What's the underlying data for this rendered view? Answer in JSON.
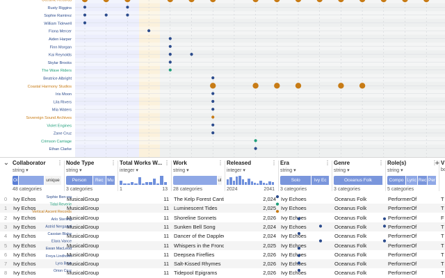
{
  "chart": {
    "people": [
      {
        "name": "Oceanic Records",
        "color": "#c77b15"
      },
      {
        "name": "Rusty Riggins",
        "color": "#2b4b8c"
      },
      {
        "name": "Sophie Ramirez",
        "color": "#2b4b8c"
      },
      {
        "name": "William Tidewell",
        "color": "#2b4b8c"
      },
      {
        "name": "Fiona Mercer",
        "color": "#2b4b8c"
      },
      {
        "name": "Aiden Harper",
        "color": "#2b4b8c"
      },
      {
        "name": "Finn Morgan",
        "color": "#2b4b8c"
      },
      {
        "name": "Kai Reynolds",
        "color": "#2b4b8c"
      },
      {
        "name": "Skylar Brooks",
        "color": "#2b4b8c"
      },
      {
        "name": "The Wave Riders",
        "color": "#1e9e7a"
      },
      {
        "name": "Beatrice Albright",
        "color": "#2b4b8c"
      },
      {
        "name": "Coastal Harmony Studios",
        "color": "#c77b15"
      },
      {
        "name": "Iris Moon",
        "color": "#2b4b8c"
      },
      {
        "name": "Lila Rivers",
        "color": "#2b4b8c"
      },
      {
        "name": "Mia Waters",
        "color": "#2b4b8c"
      },
      {
        "name": "Sovereign Sound Archives",
        "color": "#c77b15"
      },
      {
        "name": "Violet Engines",
        "color": "#1e9e7a"
      },
      {
        "name": "Zane Cruz",
        "color": "#2b4b8c"
      },
      {
        "name": "Crimson Carriage",
        "color": "#1e9e7a"
      },
      {
        "name": "Ethan Clarke",
        "color": "#2b4b8c"
      }
    ],
    "dots": [
      {
        "row": 0,
        "col": 0,
        "big": true,
        "color": "#c77b15"
      },
      {
        "row": 0,
        "col": 1,
        "big": true,
        "color": "#c77b15"
      },
      {
        "row": 0,
        "col": 2,
        "big": true,
        "color": "#c77b15"
      },
      {
        "row": 0,
        "col": 4,
        "big": true,
        "color": "#c77b15"
      },
      {
        "row": 0,
        "col": 5,
        "big": true,
        "color": "#c77b15"
      },
      {
        "row": 0,
        "col": 6,
        "big": true,
        "color": "#c77b15"
      },
      {
        "row": 0,
        "col": 8,
        "big": true,
        "color": "#c77b15"
      },
      {
        "row": 0,
        "col": 9,
        "big": true,
        "color": "#c77b15"
      },
      {
        "row": 0,
        "col": 10,
        "big": true,
        "color": "#c77b15"
      },
      {
        "row": 0,
        "col": 11,
        "big": true,
        "color": "#c77b15"
      },
      {
        "row": 0,
        "col": 12,
        "big": true,
        "color": "#c77b15"
      },
      {
        "row": 0,
        "col": 13,
        "big": true,
        "color": "#c77b15"
      },
      {
        "row": 0,
        "col": 14,
        "big": true,
        "color": "#c77b15"
      },
      {
        "row": 0,
        "col": 15,
        "big": true,
        "color": "#c77b15"
      },
      {
        "row": 0,
        "col": 16,
        "big": true,
        "color": "#c77b15"
      },
      {
        "row": 1,
        "col": 0,
        "big": false,
        "color": "#2b4b8c"
      },
      {
        "row": 1,
        "col": 2,
        "big": false,
        "color": "#2b4b8c"
      },
      {
        "row": 2,
        "col": 0,
        "big": false,
        "color": "#2b4b8c"
      },
      {
        "row": 2,
        "col": 1,
        "big": false,
        "color": "#2b4b8c"
      },
      {
        "row": 2,
        "col": 2,
        "big": false,
        "color": "#2b4b8c"
      },
      {
        "row": 3,
        "col": 0,
        "big": false,
        "color": "#2b4b8c"
      },
      {
        "row": 4,
        "col": 3,
        "big": false,
        "color": "#2b4b8c"
      },
      {
        "row": 5,
        "col": 4,
        "big": false,
        "color": "#2b4b8c"
      },
      {
        "row": 6,
        "col": 4,
        "big": false,
        "color": "#2b4b8c"
      },
      {
        "row": 7,
        "col": 4,
        "big": false,
        "color": "#2b4b8c"
      },
      {
        "row": 7,
        "col": 5,
        "big": false,
        "color": "#2b4b8c"
      },
      {
        "row": 8,
        "col": 4,
        "big": false,
        "color": "#2b4b8c"
      },
      {
        "row": 9,
        "col": 4,
        "big": false,
        "color": "#1e9e7a"
      },
      {
        "row": 10,
        "col": 6,
        "big": false,
        "color": "#2b4b8c"
      },
      {
        "row": 11,
        "col": 6,
        "big": true,
        "color": "#c77b15"
      },
      {
        "row": 11,
        "col": 8,
        "big": true,
        "color": "#c77b15"
      },
      {
        "row": 11,
        "col": 9,
        "big": true,
        "color": "#c77b15"
      },
      {
        "row": 11,
        "col": 10,
        "big": true,
        "color": "#c77b15"
      },
      {
        "row": 11,
        "col": 12,
        "big": true,
        "color": "#c77b15"
      },
      {
        "row": 11,
        "col": 13,
        "big": true,
        "color": "#c77b15"
      },
      {
        "row": 12,
        "col": 6,
        "big": false,
        "color": "#2b4b8c"
      },
      {
        "row": 13,
        "col": 6,
        "big": false,
        "color": "#2b4b8c"
      },
      {
        "row": 14,
        "col": 6,
        "big": false,
        "color": "#2b4b8c"
      },
      {
        "row": 15,
        "col": 6,
        "big": false,
        "color": "#c77b15"
      },
      {
        "row": 16,
        "col": 6,
        "big": false,
        "color": "#2b4b8c"
      },
      {
        "row": 17,
        "col": 6,
        "big": false,
        "color": "#2b4b8c"
      },
      {
        "row": 18,
        "col": 8,
        "big": false,
        "color": "#1e9e7a"
      },
      {
        "row": 19,
        "col": 8,
        "big": false,
        "color": "#2b4b8c"
      }
    ]
  },
  "table": {
    "columns": [
      {
        "name": "Collaborator",
        "type": "string",
        "summary": "48 categories",
        "viz": "cat"
      },
      {
        "name": "Node Type",
        "type": "string",
        "summary": "3 categories",
        "viz": "cat"
      },
      {
        "name": "Total Works W...",
        "type": "integer",
        "summary_min": "1",
        "summary_max": "13",
        "viz": "hist"
      },
      {
        "name": "Work",
        "type": "string",
        "summary": "28 categories",
        "viz": "cat"
      },
      {
        "name": "Released",
        "type": "integer",
        "summary_min": "2024",
        "summary_max": "2041",
        "viz": "hist"
      },
      {
        "name": "Era",
        "type": "string",
        "summary": "3 categories",
        "viz": "cat"
      },
      {
        "name": "Genre",
        "type": "string",
        "summary": "3 categories",
        "viz": "cat"
      },
      {
        "name": "Role(s)",
        "type": "string",
        "summary": "5 categories",
        "viz": "cat"
      },
      {
        "name": "V",
        "type": "bo",
        "summary": "",
        "viz": "none"
      }
    ],
    "cat_bars": {
      "collaborator": [
        {
          "label": "Oi",
          "w": 0.13,
          "color": "#5b7fd6"
        },
        {
          "label": "",
          "w": 0.52,
          "color": "#8fa8e6"
        },
        {
          "label": "unique",
          "w": 0.35,
          "color": "#f2f2f2",
          "text": "#333"
        }
      ],
      "node_type": [
        {
          "label": "Person",
          "w": 0.55,
          "color": "#7a96dc"
        },
        {
          "label": "Rec",
          "w": 0.26,
          "color": "#8fa8e6"
        },
        {
          "label": "Mu",
          "w": 0.19,
          "color": "#7a96dc"
        }
      ],
      "work": [
        {
          "label": "",
          "w": 0.9,
          "color": "#8fa8e6"
        },
        {
          "label": "ul",
          "w": 0.1,
          "color": "#f2f2f2",
          "text": "#333"
        }
      ],
      "era": [
        {
          "label": "Solo",
          "w": 0.64,
          "color": "#7a96dc"
        },
        {
          "label": "Ivy Ec",
          "w": 0.36,
          "color": "#7a96dc"
        }
      ],
      "genre": [
        {
          "label": "Oceanus Folk",
          "w": 1.0,
          "color": "#7a96dc"
        }
      ],
      "roles": [
        {
          "label": "Compo",
          "w": 0.38,
          "color": "#7a96dc"
        },
        {
          "label": "Lyric",
          "w": 0.24,
          "color": "#8fa8e6"
        },
        {
          "label": "Rec",
          "w": 0.2,
          "color": "#7a96dc"
        },
        {
          "label": "Per",
          "w": 0.18,
          "color": "#8fa8e6"
        }
      ]
    },
    "hist_total": [
      3,
      1,
      1,
      2,
      1,
      5,
      1,
      2,
      2,
      4,
      1,
      6,
      2
    ],
    "hist_released": [
      7,
      10,
      6,
      11,
      12,
      7,
      4,
      8,
      5,
      3,
      2,
      6,
      3,
      2,
      5,
      4
    ],
    "rows": [
      {
        "idx": "0",
        "collab": "Ivy Echos",
        "type": "MusicalGroup",
        "total": "11",
        "work": "The Kelp Forest Cantic",
        "rel": "2,024",
        "era": "Ivy Echoes",
        "genre": "Oceanus Folk",
        "role": "PerformerOf",
        "v": "T"
      },
      {
        "idx": "1",
        "collab": "Ivy Echos",
        "type": "MusicalGroup",
        "total": "11",
        "work": "Luminescent Tides",
        "rel": "2,025",
        "era": "Ivy Echoes",
        "genre": "Oceanus Folk",
        "role": "PerformerOf",
        "v": "T"
      },
      {
        "idx": "2",
        "collab": "Ivy Echos",
        "type": "MusicalGroup",
        "total": "11",
        "work": "Shoreline Sonnets",
        "rel": "2,026",
        "era": "Ivy Echoes",
        "genre": "Oceanus Folk",
        "role": "PerformerOf",
        "v": "F"
      },
      {
        "idx": "3",
        "collab": "Ivy Echos",
        "type": "MusicalGroup",
        "total": "11",
        "work": "Sunken Bell Song",
        "rel": "2,024",
        "era": "Ivy Echoes",
        "genre": "Oceanus Folk",
        "role": "PerformerOf",
        "v": "T"
      },
      {
        "idx": "4",
        "collab": "Ivy Echos",
        "type": "MusicalGroup",
        "total": "11",
        "work": "Dancer of the Dappled",
        "rel": "2,024",
        "era": "Ivy Echoes",
        "genre": "Oceanus Folk",
        "role": "PerformerOf",
        "v": "T"
      },
      {
        "idx": "5",
        "collab": "Ivy Echos",
        "type": "MusicalGroup",
        "total": "11",
        "work": "Whispers in the Fronds",
        "rel": "2,025",
        "era": "Ivy Echoes",
        "genre": "Oceanus Folk",
        "role": "PerformerOf",
        "v": "T"
      },
      {
        "idx": "6",
        "collab": "Ivy Echos",
        "type": "MusicalGroup",
        "total": "11",
        "work": "Deepsea Fireflies",
        "rel": "2,026",
        "era": "Ivy Echoes",
        "genre": "Oceanus Folk",
        "role": "PerformerOf",
        "v": "T"
      },
      {
        "idx": "7",
        "collab": "Ivy Echos",
        "type": "MusicalGroup",
        "total": "11",
        "work": "Salt-Kissed Rhymes",
        "rel": "2,026",
        "era": "Ivy Echoes",
        "genre": "Oceanus Folk",
        "role": "PerformerOf",
        "v": "T"
      },
      {
        "idx": "8",
        "collab": "Ivy Echos",
        "type": "MusicalGroup",
        "total": "11",
        "work": "Tidepool Epigrams",
        "rel": "2,026",
        "era": "Ivy Echoes",
        "genre": "Oceanus Folk",
        "role": "PerformerOf",
        "v": "T"
      }
    ],
    "overlay_labels": [
      {
        "name": "Sophie Ben-wa",
        "color": "#2b4b8c"
      },
      {
        "name": "Tidal Reverie",
        "color": "#1e9e7a"
      },
      {
        "name": "Vertical Ascent Records",
        "color": "#c77b15"
      },
      {
        "name": "Arlo Sterling",
        "color": "#2b4b8c"
      },
      {
        "name": "Astrid Nergaard",
        "color": "#2b4b8c"
      },
      {
        "name": "Cassian Blake",
        "color": "#2b4b8c"
      },
      {
        "name": "Elara Vance",
        "color": "#2b4b8c"
      },
      {
        "name": "Ewan MacLeod",
        "color": "#2b4b8c"
      },
      {
        "name": "Freya Lindholm",
        "color": "#2b4b8c"
      },
      {
        "name": "Lyra Brae",
        "color": "#2b4b8c"
      },
      {
        "name": "Orion Cruz",
        "color": "#2b4b8c"
      }
    ]
  }
}
